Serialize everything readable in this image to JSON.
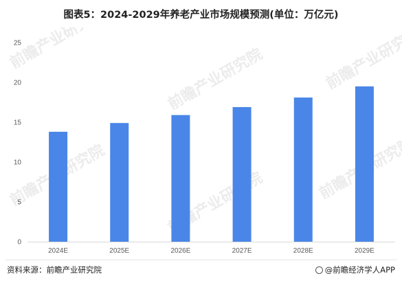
{
  "header": {
    "title": "图表5：2024-2029年养老产业市场规模预测(单位：万亿元)"
  },
  "chart_data": {
    "type": "bar",
    "title": "图表5：2024-2029年养老产业市场规模预测(单位：万亿元)",
    "categories": [
      "2024E",
      "2025E",
      "2026E",
      "2027E",
      "2028E",
      "2029E"
    ],
    "values": [
      13.8,
      14.9,
      15.9,
      16.9,
      18.1,
      19.5
    ],
    "yticks": [
      0,
      5,
      10,
      15,
      20,
      25
    ],
    "ylim": [
      0,
      25
    ],
    "grid": false,
    "legend": "none",
    "bar_color": "#4a86e8"
  },
  "watermark": {
    "text": "前瞻产业研究院"
  },
  "footer": {
    "source": "资料来源：前瞻产业研究院",
    "brand": "@前瞻经济学人APP"
  }
}
